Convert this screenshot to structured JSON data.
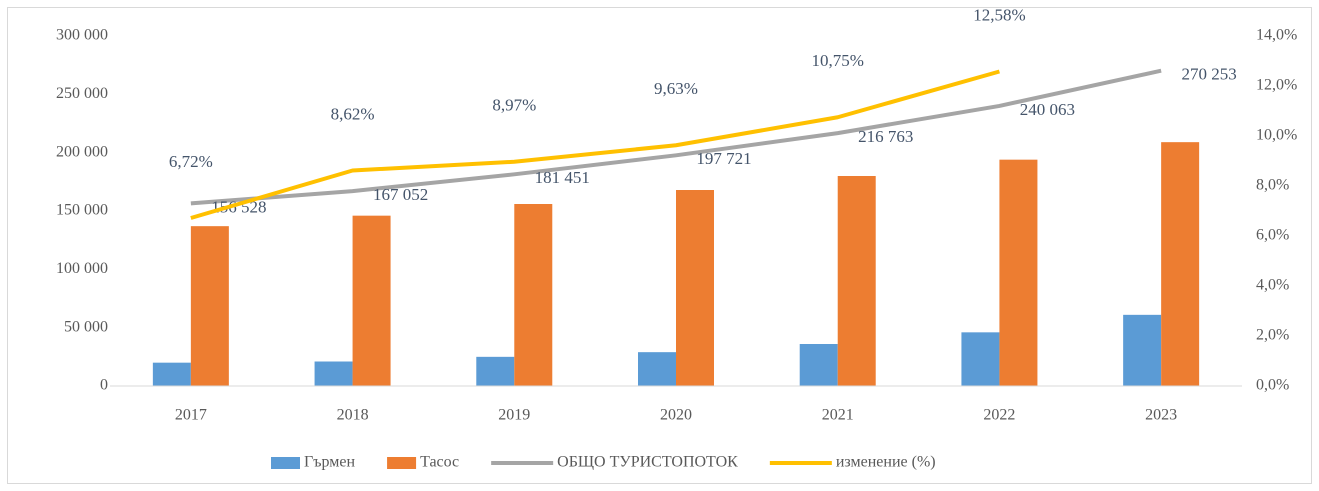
{
  "chart_data": {
    "type": "bar",
    "categories": [
      "2017",
      "2018",
      "2019",
      "2020",
      "2021",
      "2022",
      "2023"
    ],
    "series": [
      {
        "name": "Гърмен",
        "color": "#5b9bd5",
        "values": [
          20000,
          21000,
          25000,
          29000,
          36000,
          46000,
          61000
        ]
      },
      {
        "name": "Тасос",
        "color": "#ed7d31",
        "values": [
          137000,
          146000,
          156000,
          168000,
          180000,
          194000,
          209000
        ]
      },
      {
        "name": "ОБЩО ТУРИСТОПОТОК",
        "type": "line",
        "color": "#a5a5a5",
        "values": [
          156528,
          167052,
          181451,
          197721,
          216763,
          240063,
          270253
        ],
        "value_labels": [
          "156 528",
          "167 052",
          "181 451",
          "197 721",
          "216 763",
          "240 063",
          "270 253"
        ]
      },
      {
        "name": "изменение (%)",
        "type": "line",
        "axis": "y2",
        "color": "#ffc000",
        "values": [
          6.72,
          8.62,
          8.97,
          9.63,
          10.75,
          12.58,
          null
        ],
        "value_labels": [
          "6,72%",
          "8,62%",
          "8,97%",
          "9,63%",
          "10,75%",
          "12,58%",
          null
        ]
      }
    ],
    "ylim": [
      0,
      300000
    ],
    "yticks": [
      0,
      {
        "value": 50000,
        "label": "50 000"
      },
      {
        "value": 100000,
        "label": "100 000"
      },
      {
        "value": 150000,
        "label": "150 000"
      },
      {
        "value": 200000,
        "label": "200 000"
      },
      {
        "value": 250000,
        "label": "250 000"
      },
      {
        "value": 300000,
        "label": "300 000"
      }
    ],
    "y2lim": [
      0,
      14
    ],
    "y2ticks": [
      {
        "value": 0,
        "label": "0,0%"
      },
      {
        "value": 2,
        "label": "2,0%"
      },
      {
        "value": 4,
        "label": "4,0%"
      },
      {
        "value": 6,
        "label": "6,0%"
      },
      {
        "value": 8,
        "label": "8,0%"
      },
      {
        "value": 10,
        "label": "10,0%"
      },
      {
        "value": 12,
        "label": "12,0%"
      },
      {
        "value": 14,
        "label": "14,0%"
      }
    ],
    "grid": false,
    "legend": "bottom"
  }
}
